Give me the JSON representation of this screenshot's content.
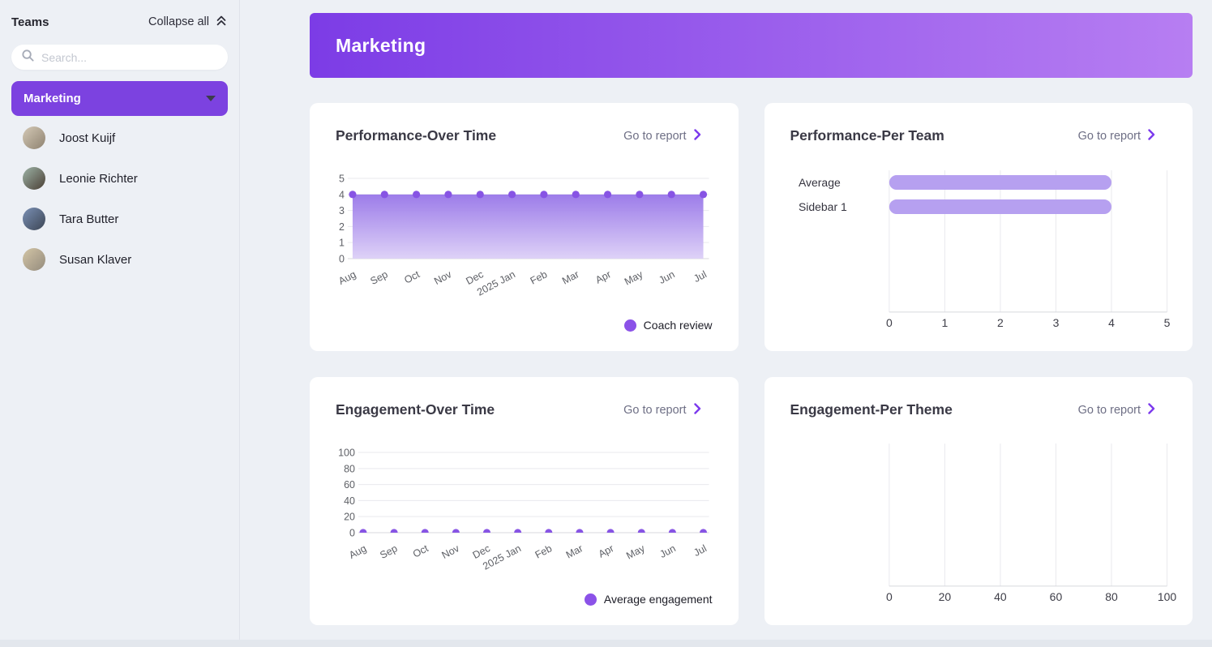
{
  "sidebar": {
    "title": "Teams",
    "collapse_all_label": "Collapse all",
    "search_placeholder": "Search...",
    "team_selector_label": "Marketing",
    "members": [
      {
        "name": "Joost Kuijf",
        "avatar_colors": [
          "#d4c9b6",
          "#8e8270"
        ]
      },
      {
        "name": "Leonie Richter",
        "avatar_colors": [
          "#9db3a6",
          "#4a3f35"
        ]
      },
      {
        "name": "Tara Butter",
        "avatar_colors": [
          "#7a90b5",
          "#3c4554"
        ]
      },
      {
        "name": "Susan Klaver",
        "avatar_colors": [
          "#d3c5a6",
          "#948b7d"
        ]
      }
    ]
  },
  "banner": {
    "title": "Marketing"
  },
  "colors": {
    "accent": "#7c3aed",
    "sidebar_team_button": "#7c42e0",
    "banner_gradient_start": "#7c3ce6",
    "banner_gradient_end": "#b77ef2",
    "bar_fill": "#b6a0f0",
    "dot": "#8754e4",
    "area_top": "#9775e8",
    "area_bottom": "#dccff7",
    "legend_dot": "#8b52e8"
  },
  "chart_data": [
    {
      "id": "performance-over-time",
      "type": "area",
      "title": "Performance-Over Time",
      "link_label": "Go to report",
      "x": [
        "Aug",
        "Sep",
        "Oct",
        "Nov",
        "Dec",
        "2025 Jan",
        "Feb",
        "Mar",
        "Apr",
        "May",
        "Jun",
        "Jul"
      ],
      "series": [
        {
          "name": "Coach review",
          "values": [
            4,
            4,
            4,
            4,
            4,
            4,
            4,
            4,
            4,
            4,
            4,
            4
          ]
        }
      ],
      "ylim": [
        0,
        5
      ],
      "yticks": [
        0,
        1,
        2,
        3,
        4,
        5
      ],
      "grid": true,
      "legend_position": "bottom-right"
    },
    {
      "id": "performance-per-team",
      "type": "bar",
      "orientation": "horizontal",
      "title": "Performance-Per Team",
      "link_label": "Go to report",
      "categories": [
        "Average",
        "Sidebar 1"
      ],
      "values": [
        4,
        4
      ],
      "xlim": [
        0,
        5
      ],
      "xticks": [
        0,
        1,
        2,
        3,
        4,
        5
      ],
      "grid": true
    },
    {
      "id": "engagement-over-time",
      "type": "line",
      "title": "Engagement-Over Time",
      "link_label": "Go to report",
      "x": [
        "Aug",
        "Sep",
        "Oct",
        "Nov",
        "Dec",
        "2025 Jan",
        "Feb",
        "Mar",
        "Apr",
        "May",
        "Jun",
        "Jul"
      ],
      "series": [
        {
          "name": "Average engagement",
          "values": [
            0,
            0,
            0,
            0,
            0,
            0,
            0,
            0,
            0,
            0,
            0,
            0
          ]
        }
      ],
      "ylim": [
        0,
        100
      ],
      "yticks": [
        0,
        20,
        40,
        60,
        80,
        100
      ],
      "grid": true,
      "legend_position": "bottom-right"
    },
    {
      "id": "engagement-per-theme",
      "type": "bar",
      "orientation": "horizontal",
      "title": "Engagement-Per Theme",
      "link_label": "Go to report",
      "categories": [],
      "values": [],
      "xlim": [
        0,
        100
      ],
      "xticks": [
        0,
        20,
        40,
        60,
        80,
        100
      ],
      "grid": true
    }
  ]
}
